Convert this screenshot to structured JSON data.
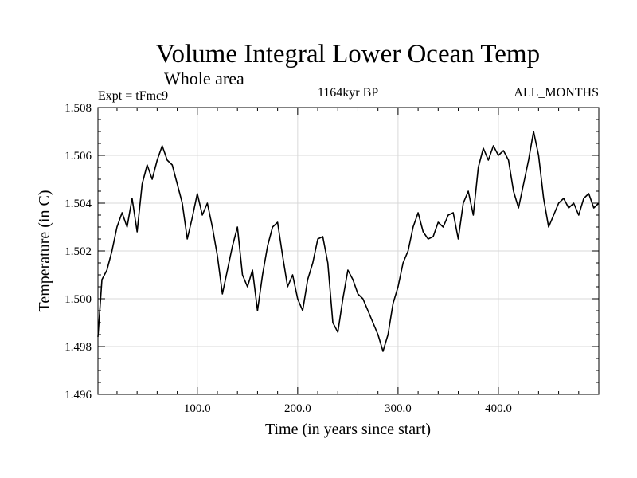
{
  "chart_data": {
    "type": "line",
    "title": "Volume Integral Lower Ocean Temp",
    "subtitle": "Whole area",
    "left_label": "Expt = tFmc9",
    "center_label": "1164kyr BP",
    "right_label": "ALL_MONTHS",
    "xlabel": "Time (in years since start)",
    "ylabel": "Temperature (in C)",
    "xlim": [
      1,
      500
    ],
    "ylim": [
      1.496,
      1.508
    ],
    "x_ticks": [
      100,
      200,
      300,
      400
    ],
    "x_tick_labels": [
      "100.0",
      "200.0",
      "300.0",
      "400.0"
    ],
    "y_ticks": [
      1.496,
      1.498,
      1.5,
      1.502,
      1.504,
      1.506,
      1.508
    ],
    "y_tick_labels": [
      "1.496",
      "1.498",
      "1.500",
      "1.502",
      "1.504",
      "1.506",
      "1.508"
    ],
    "series": [
      {
        "name": "Temperature",
        "color": "#000000",
        "x": [
          1,
          5,
          10,
          15,
          20,
          25,
          30,
          35,
          40,
          45,
          50,
          55,
          60,
          65,
          70,
          75,
          80,
          85,
          90,
          95,
          100,
          105,
          110,
          115,
          120,
          125,
          130,
          135,
          140,
          145,
          150,
          155,
          160,
          165,
          170,
          175,
          180,
          185,
          190,
          195,
          200,
          205,
          210,
          215,
          220,
          225,
          230,
          235,
          240,
          245,
          250,
          255,
          260,
          265,
          270,
          275,
          280,
          285,
          290,
          295,
          300,
          305,
          310,
          315,
          320,
          325,
          330,
          335,
          340,
          345,
          350,
          355,
          360,
          365,
          370,
          375,
          380,
          385,
          390,
          395,
          400,
          405,
          410,
          415,
          420,
          425,
          430,
          435,
          440,
          445,
          450,
          455,
          460,
          465,
          470,
          475,
          480,
          485,
          490,
          495,
          500
        ],
        "values": [
          1.4984,
          1.5008,
          1.5012,
          1.502,
          1.503,
          1.5036,
          1.503,
          1.5042,
          1.5028,
          1.5048,
          1.5056,
          1.505,
          1.5058,
          1.5064,
          1.5058,
          1.5056,
          1.5048,
          1.504,
          1.5025,
          1.5034,
          1.5044,
          1.5035,
          1.504,
          1.503,
          1.5018,
          1.5002,
          1.5012,
          1.5022,
          1.503,
          1.501,
          1.5005,
          1.5012,
          1.4995,
          1.501,
          1.5022,
          1.503,
          1.5032,
          1.5018,
          1.5005,
          1.501,
          1.5,
          1.4995,
          1.5008,
          1.5015,
          1.5025,
          1.5026,
          1.5015,
          1.499,
          1.4986,
          1.5,
          1.5012,
          1.5008,
          1.5002,
          1.5,
          1.4995,
          1.499,
          1.4985,
          1.4978,
          1.4985,
          1.4998,
          1.5005,
          1.5015,
          1.502,
          1.503,
          1.5036,
          1.5028,
          1.5025,
          1.5026,
          1.5032,
          1.503,
          1.5035,
          1.5036,
          1.5025,
          1.504,
          1.5045,
          1.5035,
          1.5055,
          1.5063,
          1.5058,
          1.5064,
          1.506,
          1.5062,
          1.5058,
          1.5045,
          1.5038,
          1.5048,
          1.5058,
          1.507,
          1.506,
          1.5042,
          1.503,
          1.5035,
          1.504,
          1.5042,
          1.5038,
          1.504,
          1.5035,
          1.5042,
          1.5044,
          1.5038,
          1.504
        ]
      }
    ]
  }
}
